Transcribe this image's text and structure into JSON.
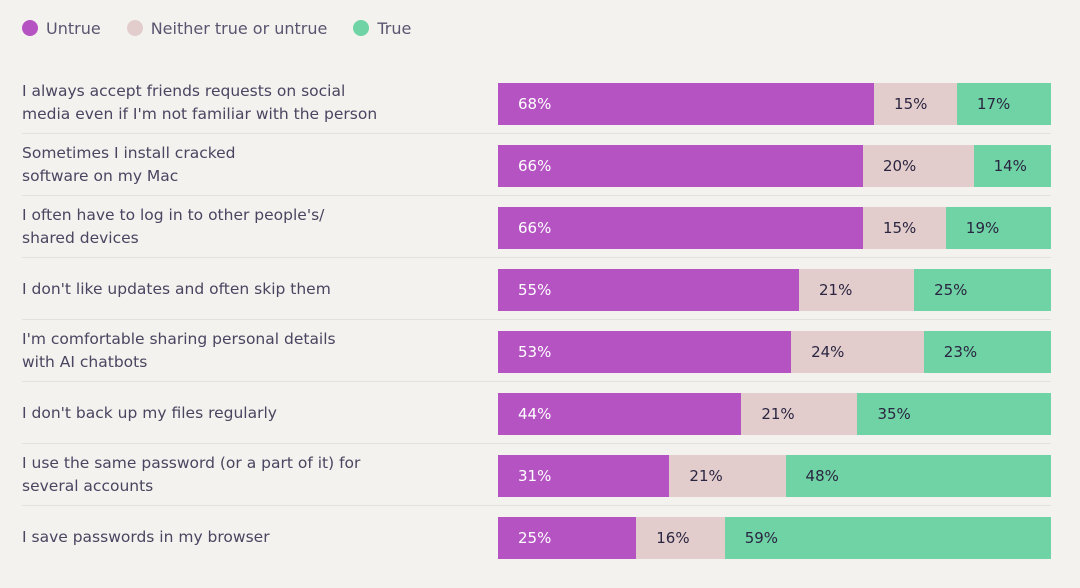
{
  "chart_data": {
    "type": "bar",
    "orientation": "horizontal",
    "stacked": true,
    "legend": [
      {
        "key": "untrue",
        "label": "Untrue",
        "color": "#b553c3"
      },
      {
        "key": "neither",
        "label": "Neither true or untrue",
        "color": "#e3cdcc"
      },
      {
        "key": "true",
        "label": "True",
        "color": "#6fd3a5"
      }
    ],
    "categories": [
      "I always accept friends requests on social\nmedia even if I'm not familiar with the person",
      "Sometimes I install cracked\nsoftware on my Mac",
      "I often have to log in to other people's/\nshared devices",
      "I don't like updates and often skip them",
      "I'm comfortable sharing personal details\nwith AI chatbots",
      "I don't back up my files regularly",
      "I use the same password (or a part of it) for\nseveral accounts",
      "I save passwords in my browser"
    ],
    "series": [
      {
        "key": "untrue",
        "name": "Untrue",
        "values": [
          68,
          66,
          66,
          55,
          53,
          44,
          31,
          25
        ]
      },
      {
        "key": "neither",
        "name": "Neither true or untrue",
        "values": [
          15,
          20,
          15,
          21,
          24,
          21,
          21,
          16
        ]
      },
      {
        "key": "true",
        "name": "True",
        "values": [
          17,
          14,
          19,
          25,
          23,
          35,
          48,
          59
        ]
      }
    ],
    "value_suffix": "%",
    "xlim": [
      0,
      100
    ]
  }
}
